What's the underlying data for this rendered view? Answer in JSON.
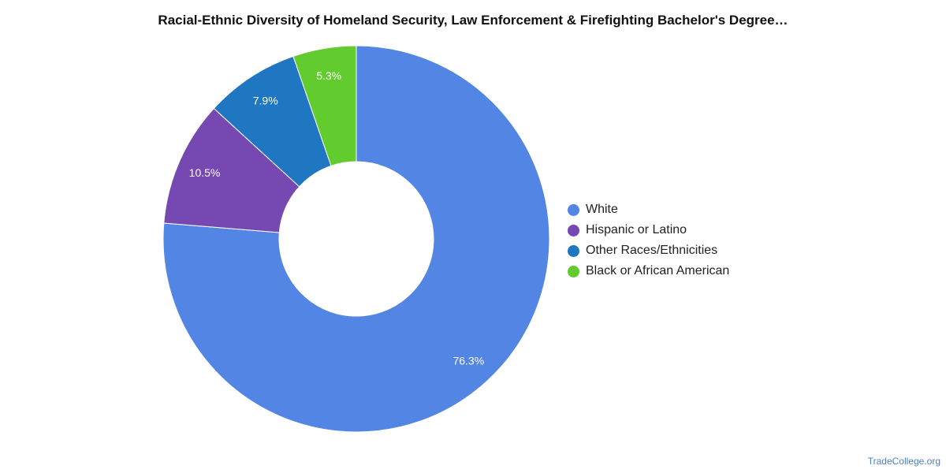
{
  "chart_data": {
    "type": "pie",
    "title": "Racial-Ethnic Diversity of Homeland Security, Law Enforcement & Firefighting Bachelor's Degree…",
    "donut": true,
    "legend_position": "right",
    "series": [
      {
        "name": "White",
        "value": 76.3,
        "label": "76.3%",
        "color": "#5386e4"
      },
      {
        "name": "Hispanic or Latino",
        "value": 10.5,
        "label": "10.5%",
        "color": "#7649b2"
      },
      {
        "name": "Other Races/Ethnicities",
        "value": 7.9,
        "label": "7.9%",
        "color": "#1f77c2"
      },
      {
        "name": "Black or African American",
        "value": 5.3,
        "label": "5.3%",
        "color": "#62cc2e"
      }
    ]
  },
  "footer": {
    "source": "TradeCollege.org"
  }
}
